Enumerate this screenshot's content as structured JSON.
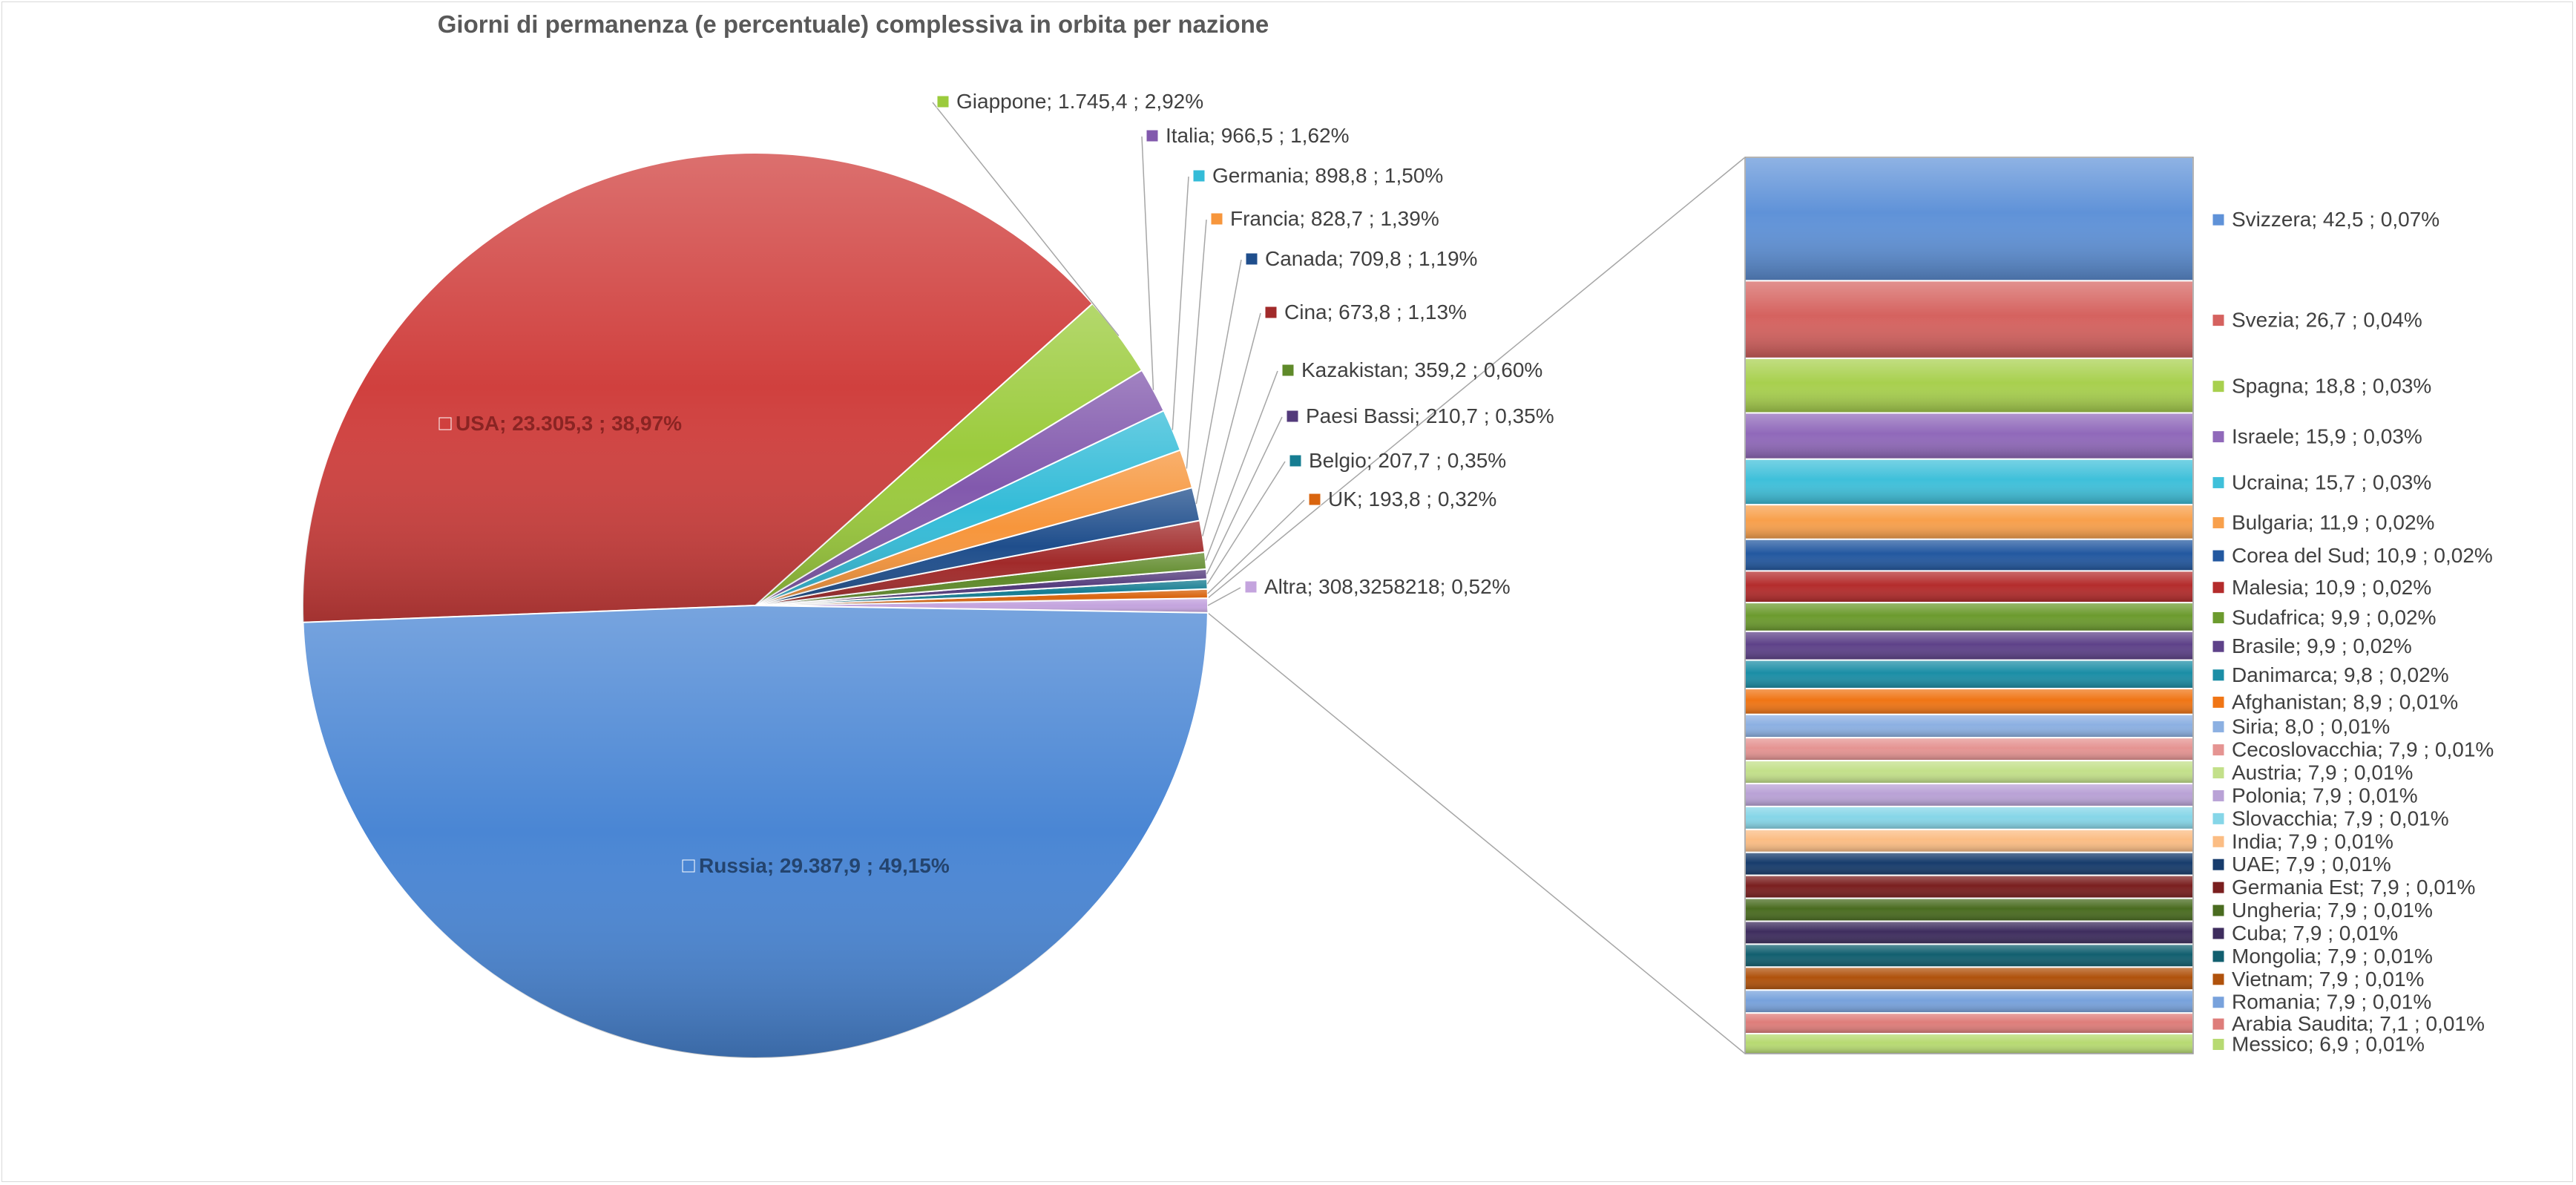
{
  "chart_data": {
    "type": "pie",
    "subtype": "bar-of-pie",
    "title": "Giorni di permanenza (e percentuale) complessiva in orbita per nazione",
    "main_slices": [
      {
        "name": "Russia",
        "value": 29387.9,
        "label": "Russia;  29.387,9 ; 49,15%",
        "color": "#4a86d4"
      },
      {
        "name": "USA",
        "value": 23305.3,
        "label": "USA;  23.305,3 ; 38,97%",
        "color": "#d0403e"
      },
      {
        "name": "Giappone",
        "value": 1745.4,
        "label": "Giappone;  1.745,4 ; 2,92%",
        "color": "#9bcb3c"
      },
      {
        "name": "Italia",
        "value": 966.5,
        "label": "Italia;  966,5 ; 1,62%",
        "color": "#8259ad"
      },
      {
        "name": "Germania",
        "value": 898.8,
        "label": "Germania;  898,8 ; 1,50%",
        "color": "#34bcd8"
      },
      {
        "name": "Francia",
        "value": 828.7,
        "label": "Francia;  828,7 ; 1,39%",
        "color": "#f7963c"
      },
      {
        "name": "Canada",
        "value": 709.8,
        "label": "Canada;  709,8 ; 1,19%",
        "color": "#1f4e8c"
      },
      {
        "name": "Cina",
        "value": 673.8,
        "label": "Cina;  673,8 ; 1,13%",
        "color": "#a12a2a"
      },
      {
        "name": "Kazakistan",
        "value": 359.2,
        "label": "Kazakistan;  359,2 ; 0,60%",
        "color": "#5f8a2a"
      },
      {
        "name": "Paesi Bassi",
        "value": 210.7,
        "label": "Paesi Bassi;  210,7 ; 0,35%",
        "color": "#533a7b"
      },
      {
        "name": "Belgio",
        "value": 207.7,
        "label": "Belgio;  207,7 ; 0,35%",
        "color": "#167d92"
      },
      {
        "name": "UK",
        "value": 193.8,
        "label": "UK;  193,8 ; 0,32%",
        "color": "#d9650f"
      },
      {
        "name": "Altra",
        "value": 308.3258218,
        "label": "Altra; 308,3258218; 0,52%",
        "color": "#c4a4de"
      }
    ],
    "secondary_bar": [
      {
        "name": "Svizzera",
        "value": 42.5,
        "label": "Svizzera;  42,5 ; 0,07%",
        "color": "#5f92d8"
      },
      {
        "name": "Svezia",
        "value": 26.7,
        "label": "Svezia;  26,7 ; 0,04%",
        "color": "#d5625f"
      },
      {
        "name": "Spagna",
        "value": 18.8,
        "label": "Spagna;  18,8 ; 0,03%",
        "color": "#a8d04e"
      },
      {
        "name": "Israele",
        "value": 15.9,
        "label": "Israele;  15,9 ; 0,03%",
        "color": "#9069ba"
      },
      {
        "name": "Ucraina",
        "value": 15.7,
        "label": "Ucraina;  15,7 ; 0,03%",
        "color": "#3fc0da"
      },
      {
        "name": "Bulgaria",
        "value": 11.9,
        "label": "Bulgaria;  11,9 ; 0,02%",
        "color": "#f8a04c"
      },
      {
        "name": "Corea del Sud",
        "value": 10.9,
        "label": "Corea del Sud;  10,9 ; 0,02%",
        "color": "#2358a0"
      },
      {
        "name": "Malesia",
        "value": 10.9,
        "label": "Malesia;  10,9 ; 0,02%",
        "color": "#b42c2c"
      },
      {
        "name": "Sudafrica",
        "value": 9.9,
        "label": "Sudafrica;  9,9 ; 0,02%",
        "color": "#6c9b2e"
      },
      {
        "name": "Brasile",
        "value": 9.9,
        "label": "Brasile;  9,9 ; 0,02%",
        "color": "#5e4289"
      },
      {
        "name": "Danimarca",
        "value": 9.8,
        "label": "Danimarca;  9,8 ; 0,02%",
        "color": "#1b8ea6"
      },
      {
        "name": "Afghanistan",
        "value": 8.9,
        "label": "Afghanistan;  8,9 ; 0,01%",
        "color": "#f07515"
      },
      {
        "name": "Siria",
        "value": 8.0,
        "label": "Siria;  8,0 ; 0,01%",
        "color": "#8cb0e2"
      },
      {
        "name": "Cecoslovacchia",
        "value": 7.9,
        "label": "Cecoslovacchia;  7,9 ; 0,01%",
        "color": "#e59492"
      },
      {
        "name": "Austria",
        "value": 7.9,
        "label": "Austria;  7,9 ; 0,01%",
        "color": "#c3e08a"
      },
      {
        "name": "Polonia",
        "value": 7.9,
        "label": "Polonia;  7,9 ; 0,01%",
        "color": "#b9a2d6"
      },
      {
        "name": "Slovacchia",
        "value": 7.9,
        "label": "Slovacchia;  7,9 ; 0,01%",
        "color": "#86d6e8"
      },
      {
        "name": "India",
        "value": 7.9,
        "label": "India;  7,9 ; 0,01%",
        "color": "#fbbd84"
      },
      {
        "name": "UAE",
        "value": 7.9,
        "label": "UAE;  7,9 ; 0,01%",
        "color": "#173c6c"
      },
      {
        "name": "Germania Est",
        "value": 7.9,
        "label": "Germania Est;  7,9 ; 0,01%",
        "color": "#7a1f1f"
      },
      {
        "name": "Ungheria",
        "value": 7.9,
        "label": "Ungheria;  7,9 ; 0,01%",
        "color": "#4a6c20"
      },
      {
        "name": "Cuba",
        "value": 7.9,
        "label": "Cuba;  7,9 ; 0,01%",
        "color": "#3e2d5e"
      },
      {
        "name": "Mongolia",
        "value": 7.9,
        "label": "Mongolia;  7,9 ; 0,01%",
        "color": "#125f6f"
      },
      {
        "name": "Vietnam",
        "value": 7.9,
        "label": "Vietnam;  7,9 ; 0,01%",
        "color": "#b0520c"
      },
      {
        "name": "Romania",
        "value": 7.9,
        "label": "Romania;  7,9 ; 0,01%",
        "color": "#78a2dc"
      },
      {
        "name": "Arabia Saudita",
        "value": 7.1,
        "label": "Arabia Saudita;  7,1 ; 0,01%",
        "color": "#de7d7a"
      },
      {
        "name": "Messico",
        "value": 6.9,
        "label": "Messico;  6,9 ; 0,01%",
        "color": "#b7da72"
      }
    ],
    "legend": "none",
    "grid": false
  }
}
